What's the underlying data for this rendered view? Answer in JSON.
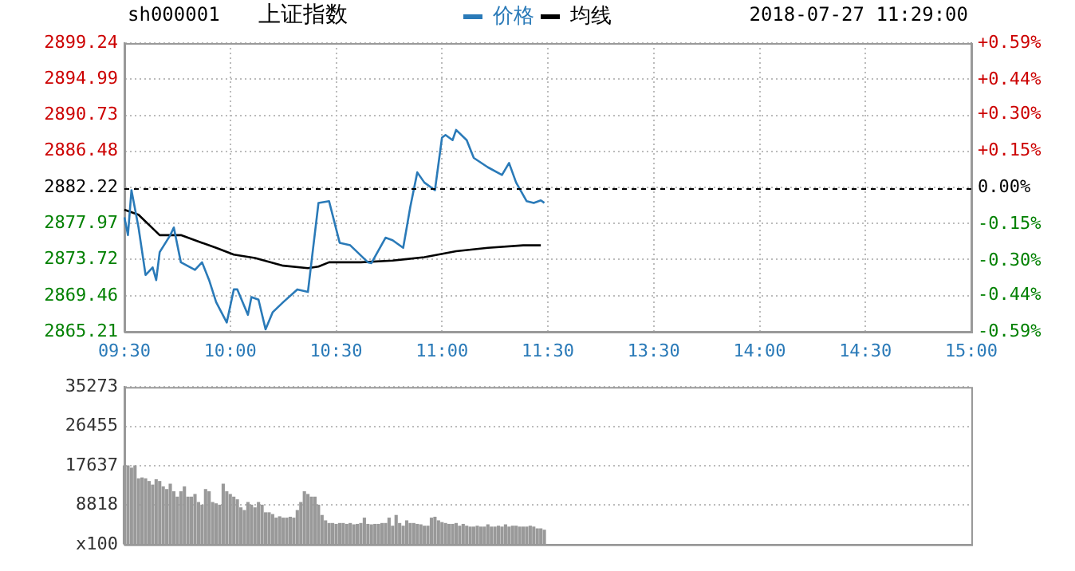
{
  "chart_data": [
    {
      "type": "line",
      "title": "上证指数",
      "annotations": [
        "sh000001",
        "2018-07-27 11:29:00"
      ],
      "legend": "top",
      "grid": true,
      "marker": "none",
      "line_style": "solid",
      "categories": [
        "09:30",
        null,
        null,
        null,
        null,
        null,
        null,
        null,
        null,
        null,
        null,
        null,
        null,
        null,
        null,
        null,
        null,
        null,
        null,
        null,
        null,
        null,
        null,
        null,
        null,
        null,
        null,
        null,
        null,
        null,
        "10:00",
        null,
        null,
        null,
        null,
        null,
        null,
        null,
        null,
        null,
        null,
        null,
        null,
        null,
        null,
        null,
        null,
        null,
        null,
        null,
        null,
        null,
        null,
        null,
        null,
        null,
        null,
        null,
        null,
        null,
        "10:30",
        null,
        null,
        null,
        null,
        null,
        null,
        null,
        null,
        null,
        null,
        null,
        null,
        null,
        null,
        null,
        null,
        null,
        null,
        null,
        null,
        null,
        null,
        null,
        null,
        null,
        null,
        null,
        null,
        null,
        "11:00",
        null,
        null,
        null,
        null,
        null,
        null,
        null,
        null,
        null,
        null,
        null,
        null,
        null,
        null,
        null,
        null,
        null,
        null,
        null,
        null,
        null,
        null,
        null,
        null,
        null,
        null,
        null,
        null,
        null,
        "11:30",
        null,
        null,
        null,
        null,
        null,
        null,
        null,
        null,
        null,
        null,
        null,
        null,
        null,
        null,
        null,
        null,
        null,
        null,
        null,
        null,
        null,
        null,
        null,
        null,
        null,
        null,
        null,
        null,
        null,
        "13:30",
        null,
        null,
        null,
        null,
        null,
        null,
        null,
        null,
        null,
        null,
        null,
        null,
        null,
        null,
        null,
        null,
        null,
        null,
        null,
        null,
        null,
        null,
        null,
        null,
        null,
        null,
        null,
        null,
        null,
        "14:00",
        null,
        null,
        null,
        null,
        null,
        null,
        null,
        null,
        null,
        null,
        null,
        null,
        null,
        null,
        null,
        null,
        null,
        null,
        null,
        null,
        null,
        null,
        null,
        null,
        null,
        null,
        null,
        null,
        null,
        "14:30",
        null,
        null,
        null,
        null,
        null,
        null,
        null,
        null,
        null,
        null,
        null,
        null,
        null,
        null,
        null,
        null,
        null,
        null,
        null,
        null,
        null,
        null,
        null,
        null,
        null,
        null,
        null,
        null,
        null,
        "15:00"
      ],
      "ylim": [
        2865.21,
        2899.24
      ],
      "yticks": [
        2865.21,
        2869.46,
        2873.72,
        2877.97,
        2882.22,
        2886.48,
        2890.73,
        2894.99,
        2899.24
      ],
      "y2lim": [
        -0.59,
        0.59
      ],
      "y2ticks": [
        {
          "value": -0.59,
          "label": "-0.59%"
        },
        {
          "value": -0.44,
          "label": "-0.44%"
        },
        {
          "value": -0.3,
          "label": "-0.30%"
        },
        {
          "value": -0.15,
          "label": "-0.15%"
        },
        {
          "value": 0,
          "label": "0.00%"
        },
        {
          "value": 0.15,
          "label": "+0.15%"
        },
        {
          "value": 0.3,
          "label": "+0.30%"
        },
        {
          "value": 0.44,
          "label": "+0.44%"
        },
        {
          "value": 0.59,
          "label": "+0.59%"
        }
      ],
      "ref_lines": [
        {
          "axis": "y",
          "value": 2882.22,
          "color": "#000000",
          "line_style": "dashed"
        }
      ],
      "series": [
        {
          "name": "价格",
          "color": "#2a7ab8",
          "values": [
            2878.7,
            2876.6,
            2881.9,
            null,
            2877.5,
            null,
            2871.9,
            null,
            2872.8,
            2871.3,
            2874.6,
            null,
            null,
            2876.6,
            2877.5,
            null,
            2873.4,
            null,
            null,
            null,
            2872.5,
            null,
            2873.4,
            null,
            2871.3,
            null,
            2868.7,
            null,
            null,
            2866.3,
            null,
            2870.2,
            2870.2,
            null,
            null,
            2867.2,
            2869.3,
            null,
            2869.0,
            null,
            2865.5,
            null,
            2867.5,
            null,
            null,
            2868.7,
            null,
            null,
            null,
            2870.2,
            null,
            null,
            2869.9,
            null,
            null,
            2880.4,
            null,
            null,
            2880.6,
            null,
            null,
            2875.7,
            null,
            null,
            2875.4,
            null,
            null,
            null,
            null,
            2873.4,
            2873.3,
            null,
            null,
            null,
            2876.3,
            null,
            2876.0,
            null,
            null,
            2875.1,
            null,
            2879.9,
            null,
            2884.0,
            null,
            2882.8,
            null,
            null,
            2881.9,
            null,
            2888.1,
            2888.4,
            null,
            2887.8,
            2889.0,
            null,
            null,
            2887.8,
            null,
            2885.7,
            null,
            null,
            null,
            2884.6,
            null,
            null,
            null,
            2883.7,
            null,
            2885.1,
            null,
            2882.8,
            null,
            null,
            2880.6,
            null,
            2880.4,
            null,
            2880.7,
            2880.4,
            null,
            null,
            null,
            null,
            null,
            null,
            null,
            null,
            null,
            null,
            null,
            null,
            null,
            null,
            null,
            null,
            null,
            null,
            null,
            null,
            null,
            null,
            null,
            null,
            null,
            null,
            null,
            null,
            null,
            null,
            null,
            null,
            null,
            null,
            null,
            null,
            null,
            null,
            null,
            null,
            null,
            null,
            null,
            null,
            null,
            null,
            null,
            null,
            null,
            null,
            null,
            null,
            null,
            null,
            null,
            null,
            null,
            null,
            null,
            null,
            null,
            null,
            null,
            null,
            null,
            null,
            null,
            null,
            null,
            null,
            null,
            null,
            null,
            null,
            null,
            null,
            null,
            null,
            null,
            null,
            null,
            null,
            null,
            null,
            null,
            null,
            null,
            null,
            null,
            null,
            null,
            null,
            null,
            null,
            null,
            null,
            null,
            null,
            null,
            null,
            null,
            null,
            null,
            null,
            null,
            null,
            null,
            null,
            null,
            null,
            null,
            null,
            null,
            null,
            null,
            null,
            null,
            null,
            null,
            null,
            null
          ]
        },
        {
          "name": "均线",
          "color": "#000000",
          "values": [
            2879.6,
            null,
            null,
            null,
            2879.0,
            null,
            null,
            null,
            null,
            null,
            2876.6,
            null,
            null,
            null,
            null,
            null,
            2876.6,
            null,
            null,
            null,
            null,
            null,
            2875.7,
            null,
            null,
            null,
            2875.1,
            null,
            null,
            null,
            null,
            2874.3,
            null,
            null,
            null,
            null,
            null,
            2873.9,
            null,
            null,
            null,
            null,
            null,
            null,
            null,
            2873.0,
            null,
            null,
            null,
            null,
            null,
            null,
            2872.7,
            null,
            null,
            2872.9,
            null,
            null,
            2873.4,
            null,
            null,
            null,
            null,
            null,
            null,
            null,
            null,
            2873.4,
            null,
            null,
            null,
            null,
            null,
            null,
            null,
            null,
            2873.6,
            null,
            null,
            null,
            null,
            null,
            null,
            null,
            null,
            2874.0,
            null,
            null,
            null,
            null,
            null,
            null,
            null,
            null,
            2874.7,
            null,
            null,
            null,
            null,
            null,
            null,
            null,
            null,
            2875.1,
            null,
            null,
            null,
            null,
            null,
            null,
            null,
            null,
            null,
            2875.4,
            null,
            null,
            null,
            null,
            2875.4,
            null,
            null,
            null,
            null,
            null,
            null,
            null,
            null,
            null,
            null,
            null,
            null,
            null,
            null,
            null,
            null,
            null,
            null,
            null,
            null,
            null,
            null,
            null,
            null,
            null,
            null,
            null,
            null,
            null,
            null,
            null,
            null,
            null,
            null,
            null,
            null,
            null,
            null,
            null,
            null,
            null,
            null,
            null,
            null,
            null,
            null,
            null,
            null,
            null,
            null,
            null,
            null,
            null,
            null,
            null,
            null,
            null,
            null,
            null,
            null,
            null,
            null,
            null,
            null,
            null,
            null,
            null,
            null,
            null,
            null,
            null,
            null,
            null,
            null,
            null,
            null,
            null,
            null,
            null,
            null,
            null,
            null,
            null,
            null,
            null,
            null,
            null,
            null,
            null,
            null,
            null,
            null,
            null,
            null,
            null,
            null,
            null,
            null,
            null,
            null,
            null,
            null,
            null,
            null,
            null,
            null,
            null,
            null,
            null,
            null,
            null,
            null,
            null,
            null,
            null,
            null,
            null,
            null,
            null,
            null,
            null,
            null
          ]
        }
      ]
    },
    {
      "type": "bar",
      "color": "#999999",
      "grid": true,
      "tick_labels": "y",
      "categories": [
        null,
        null,
        null,
        null,
        null,
        null,
        null,
        null,
        null,
        null,
        null,
        null,
        null,
        null,
        null,
        null,
        null,
        null,
        null,
        null,
        null,
        null,
        null,
        null,
        null,
        null,
        null,
        null,
        null,
        null,
        null,
        null,
        null,
        null,
        null,
        null,
        null,
        null,
        null,
        null,
        null,
        null,
        null,
        null,
        null,
        null,
        null,
        null,
        null,
        null,
        null,
        null,
        null,
        null,
        null,
        null,
        null,
        null,
        null,
        null,
        null,
        null,
        null,
        null,
        null,
        null,
        null,
        null,
        null,
        null,
        null,
        null,
        null,
        null,
        null,
        null,
        null,
        null,
        null,
        null,
        null,
        null,
        null,
        null,
        null,
        null,
        null,
        null,
        null,
        null,
        null,
        null,
        null,
        null,
        null,
        null,
        null,
        null,
        null,
        null,
        null,
        null,
        null,
        null,
        null,
        null,
        null,
        null,
        null,
        null,
        null,
        null,
        null,
        null,
        null,
        null,
        null,
        null,
        null,
        null,
        null,
        null,
        null,
        null,
        null,
        null,
        null,
        null,
        null,
        null,
        null,
        null,
        null,
        null,
        null,
        null,
        null,
        null,
        null,
        null,
        null,
        null,
        null,
        null,
        null,
        null,
        null,
        null,
        null,
        null,
        null,
        null,
        null,
        null,
        null,
        null,
        null,
        null,
        null,
        null,
        null,
        null,
        null,
        null,
        null,
        null,
        null,
        null,
        null,
        null,
        null,
        null,
        null,
        null,
        null,
        null,
        null,
        null,
        null,
        null,
        null,
        null,
        null,
        null,
        null,
        null,
        null,
        null,
        null,
        null,
        null,
        null,
        null,
        null,
        null,
        null,
        null,
        null,
        null,
        null,
        null,
        null,
        null,
        null,
        null,
        null,
        null,
        null,
        null,
        null,
        null,
        null,
        null,
        null,
        null,
        null,
        null,
        null,
        null,
        null,
        null,
        null,
        null,
        null,
        null,
        null,
        null,
        null,
        null,
        null,
        null,
        null,
        null,
        null,
        null,
        null,
        null,
        null,
        null,
        null,
        null
      ],
      "ylim": [
        0,
        35273
      ],
      "yticks": [
        {
          "value": 0,
          "label": "x100"
        },
        8818,
        17637,
        26455,
        35273
      ],
      "values": [
        17600,
        17600,
        17100,
        17600,
        14700,
        14900,
        14700,
        14100,
        13300,
        14500,
        14100,
        12900,
        12300,
        13500,
        11800,
        10600,
        11800,
        12900,
        10600,
        10600,
        11200,
        9400,
        8800,
        12300,
        11800,
        9400,
        9100,
        8800,
        13500,
        11800,
        11200,
        10600,
        10000,
        8200,
        7600,
        9400,
        8800,
        8200,
        9400,
        8800,
        7100,
        7100,
        6700,
        5900,
        6200,
        5900,
        5900,
        6100,
        5900,
        7600,
        9400,
        11800,
        11200,
        10600,
        10600,
        8800,
        6500,
        5300,
        4700,
        4700,
        4500,
        4700,
        4700,
        4500,
        4700,
        4400,
        4500,
        4700,
        5900,
        4500,
        4400,
        4500,
        4500,
        4700,
        4700,
        5900,
        4100,
        6500,
        4700,
        4100,
        5300,
        4700,
        4700,
        4500,
        4400,
        4100,
        4100,
        5900,
        6100,
        5300,
        4900,
        4700,
        4500,
        4500,
        4700,
        4100,
        4500,
        4100,
        3900,
        3900,
        4100,
        3900,
        3900,
        4400,
        3900,
        3900,
        4100,
        3900,
        4400,
        3900,
        4100,
        4100,
        3900,
        3900,
        3900,
        4100,
        3900,
        3500,
        3500,
        3200,
        null,
        null,
        null,
        null,
        null,
        null,
        null,
        null,
        null,
        null,
        null,
        null,
        null,
        null,
        null,
        null,
        null,
        null,
        null,
        null,
        null,
        null,
        null,
        null,
        null,
        null,
        null,
        null,
        null,
        null,
        null,
        null,
        null,
        null,
        null,
        null,
        null,
        null,
        null,
        null,
        null,
        null,
        null,
        null,
        null,
        null,
        null,
        null,
        null,
        null,
        null,
        null,
        null,
        null,
        null,
        null,
        null,
        null,
        null,
        null,
        null,
        null,
        null,
        null,
        null,
        null,
        null,
        null,
        null,
        null,
        null,
        null,
        null,
        null,
        null,
        null,
        null,
        null,
        null,
        null,
        null,
        null,
        null,
        null,
        null,
        null,
        null,
        null,
        null,
        null,
        null,
        null,
        null,
        null,
        null,
        null,
        null,
        null,
        null,
        null,
        null,
        null,
        null,
        null,
        null,
        null,
        null,
        null,
        null,
        null,
        null,
        null,
        null,
        null,
        null,
        null,
        null,
        null,
        null,
        null,
        null
      ]
    }
  ]
}
